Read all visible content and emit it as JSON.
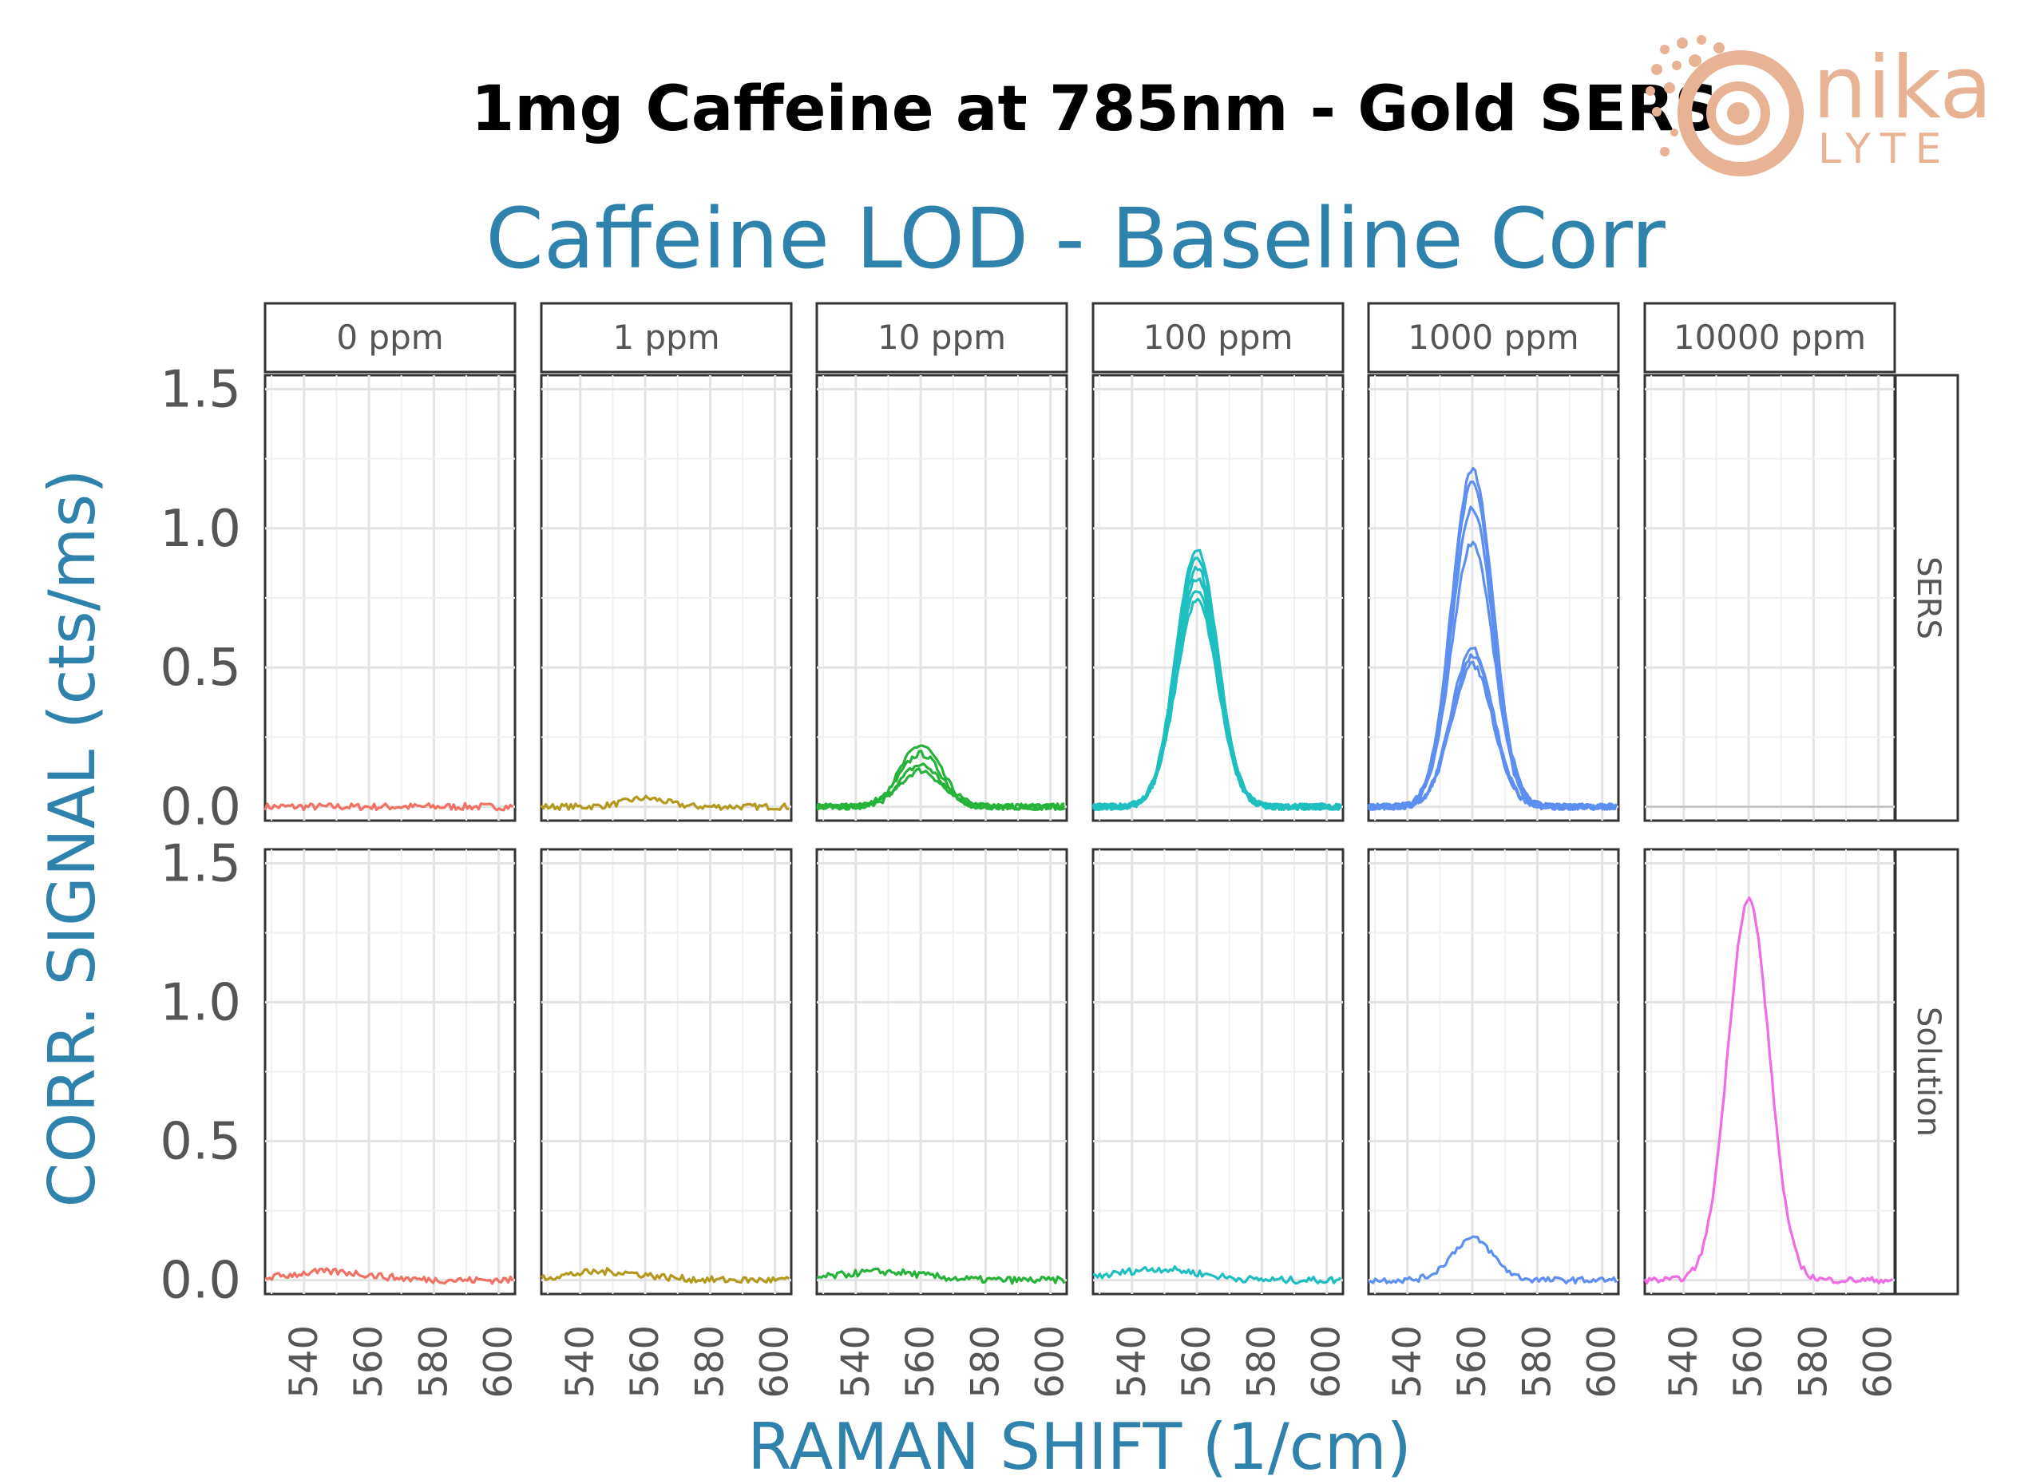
{
  "banner": {
    "title": "1mg Caffeine at 785nm - Gold SERS"
  },
  "logo": {
    "word_top": "nika",
    "word_bottom": "LYTE"
  },
  "colors": {
    "accent": "#2f82ac",
    "ppm_0": "#f07264",
    "ppm_1": "#b39a1e",
    "ppm_10": "#27b33a",
    "ppm_100": "#20bfbf",
    "ppm_1000": "#5c8ff0",
    "ppm_10000": "#ee6ce6",
    "logo": "#e8b394"
  },
  "chart_data": {
    "type": "line",
    "title": "Caffeine LOD - Baseline Corr",
    "xlabel": "RAMAN SHIFT (1/cm)",
    "ylabel": "CORR. SIGNAL (cts/ms)",
    "xlim": [
      528,
      605
    ],
    "ylim": [
      -0.05,
      1.55
    ],
    "x_ticks": [
      "540",
      "560",
      "580",
      "600"
    ],
    "y_ticks": [
      "0.0",
      "0.5",
      "1.0",
      "1.5"
    ],
    "grid": true,
    "layout": "facet grid",
    "column_facets": [
      "0 ppm",
      "1 ppm",
      "10 ppm",
      "100 ppm",
      "1000 ppm",
      "10000 ppm"
    ],
    "row_facets": [
      "SERS",
      "Solution"
    ],
    "peak_center": 560,
    "panels": [
      {
        "row": "SERS",
        "col": "0 ppm",
        "peak_heights": [
          0.0
        ],
        "flat": true
      },
      {
        "row": "SERS",
        "col": "1 ppm",
        "peak_heights": [
          0.03
        ],
        "flat": false
      },
      {
        "row": "SERS",
        "col": "10 ppm",
        "peak_heights": [
          0.22,
          0.19,
          0.15,
          0.13
        ],
        "flat": false
      },
      {
        "row": "SERS",
        "col": "100 ppm",
        "peak_heights": [
          0.93,
          0.9,
          0.86,
          0.82,
          0.78,
          0.74
        ],
        "flat": false
      },
      {
        "row": "SERS",
        "col": "1000 ppm",
        "peak_heights": [
          1.21,
          1.16,
          1.07,
          0.95,
          0.57,
          0.54,
          0.51
        ],
        "flat": false
      },
      {
        "row": "SERS",
        "col": "10000 ppm",
        "peak_heights": [],
        "flat": false
      },
      {
        "row": "Solution",
        "col": "0 ppm",
        "peak_heights": [
          0.03
        ],
        "flat": true
      },
      {
        "row": "Solution",
        "col": "1 ppm",
        "peak_heights": [
          0.03
        ],
        "flat": true
      },
      {
        "row": "Solution",
        "col": "10 ppm",
        "peak_heights": [
          0.03
        ],
        "flat": true
      },
      {
        "row": "Solution",
        "col": "100 ppm",
        "peak_heights": [
          0.04
        ],
        "flat": true
      },
      {
        "row": "Solution",
        "col": "1000 ppm",
        "peak_heights": [
          0.15
        ],
        "flat": false
      },
      {
        "row": "Solution",
        "col": "10000 ppm",
        "peak_heights": [
          1.37
        ],
        "flat": false
      }
    ]
  }
}
